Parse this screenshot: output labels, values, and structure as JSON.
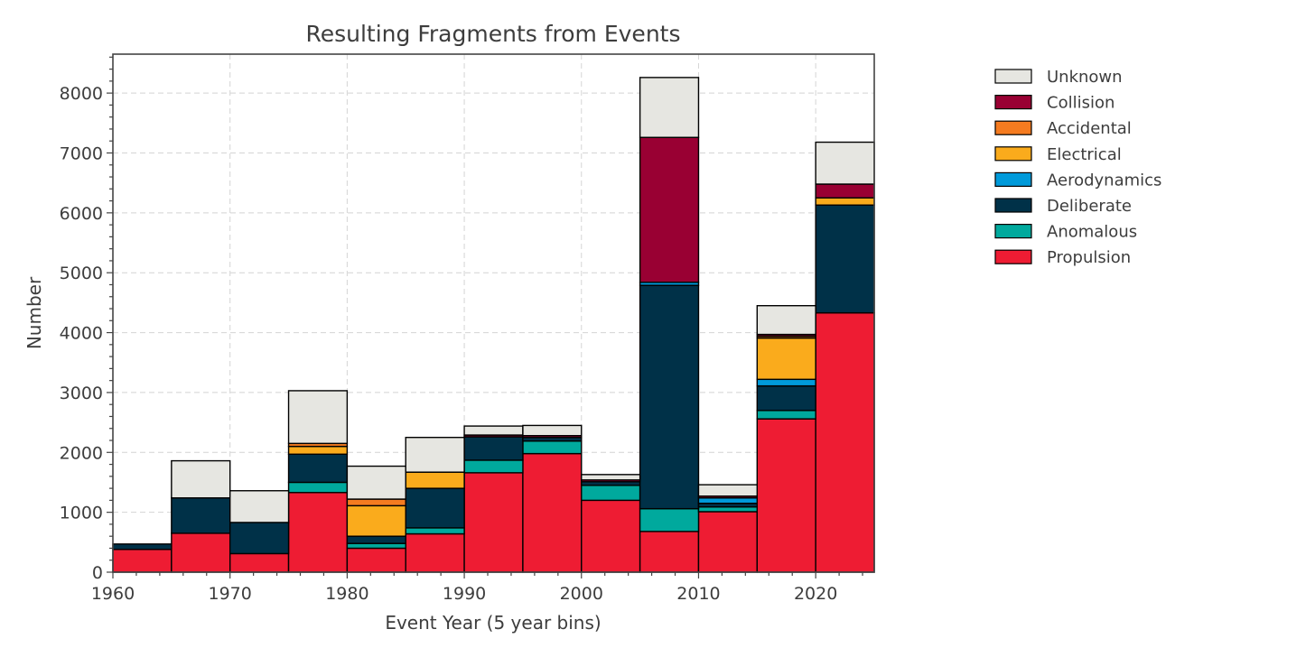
{
  "chart_data": {
    "type": "bar",
    "stacked": true,
    "title": "Resulting Fragments from Events",
    "xlabel": "Event Year (5 year bins)",
    "ylabel": "Number",
    "xlim": [
      1960,
      2025
    ],
    "ylim": [
      0,
      8650
    ],
    "xticks": [
      1960,
      1970,
      1980,
      1990,
      2000,
      2010,
      2020
    ],
    "yticks": [
      0,
      1000,
      2000,
      3000,
      4000,
      5000,
      6000,
      7000,
      8000
    ],
    "bin_width": 5,
    "bins": [
      1960,
      1965,
      1970,
      1975,
      1980,
      1985,
      1990,
      1995,
      2000,
      2005,
      2010,
      2015,
      2020
    ],
    "grid": true,
    "legend_position": "outside-right-top",
    "series": [
      {
        "name": "Propulsion",
        "color": "#ee1c33",
        "values": [
          380,
          650,
          310,
          1330,
          400,
          640,
          1660,
          1980,
          1200,
          680,
          1010,
          2560,
          4330
        ]
      },
      {
        "name": "Anomalous",
        "color": "#00a99d",
        "values": [
          0,
          0,
          0,
          170,
          80,
          100,
          210,
          210,
          250,
          380,
          80,
          140,
          0
        ]
      },
      {
        "name": "Deliberate",
        "color": "#003148",
        "values": [
          90,
          590,
          520,
          470,
          120,
          660,
          390,
          60,
          60,
          3730,
          60,
          410,
          1800
        ]
      },
      {
        "name": "Aerodynamics",
        "color": "#009ada",
        "values": [
          0,
          0,
          0,
          0,
          0,
          0,
          0,
          0,
          0,
          50,
          90,
          110,
          0
        ]
      },
      {
        "name": "Electrical",
        "color": "#faab1c",
        "values": [
          0,
          0,
          0,
          130,
          510,
          270,
          0,
          0,
          0,
          0,
          0,
          690,
          120
        ]
      },
      {
        "name": "Accidental",
        "color": "#f57b20",
        "values": [
          0,
          0,
          0,
          50,
          110,
          0,
          0,
          0,
          0,
          0,
          0,
          30,
          0
        ]
      },
      {
        "name": "Collision",
        "color": "#990033",
        "values": [
          0,
          0,
          0,
          0,
          0,
          0,
          30,
          30,
          30,
          2420,
          30,
          30,
          230
        ]
      },
      {
        "name": "Unknown",
        "color": "#e6e6e1",
        "values": [
          0,
          620,
          530,
          880,
          550,
          580,
          150,
          170,
          90,
          1000,
          190,
          480,
          700
        ]
      }
    ]
  }
}
